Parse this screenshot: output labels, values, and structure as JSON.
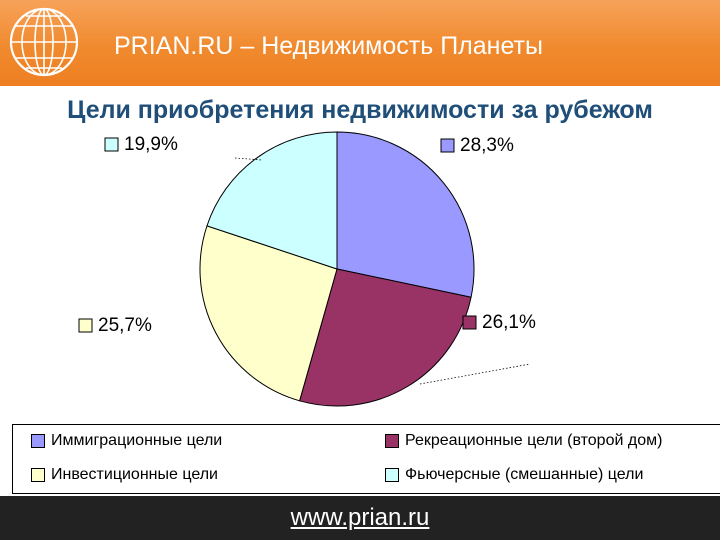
{
  "header": {
    "title": "PRIAN.RU – Недвижимость Планеты"
  },
  "slide": {
    "title": "Цели приобретения недвижимости за рубежом"
  },
  "chart_data": {
    "type": "pie",
    "title": "",
    "slices": [
      {
        "label": "Иммиграционные цели",
        "value": 28.3,
        "display": "28,3%",
        "color": "#9999ff"
      },
      {
        "label": "Рекреационные цели (второй дом)",
        "value": 26.1,
        "display": "26,1%",
        "color": "#993366"
      },
      {
        "label": "Инвестиционные цели",
        "value": 25.7,
        "display": "25,7%",
        "color": "#ffffcc"
      },
      {
        "label": "Фьючерсные (смешанные) цели",
        "value": 19.9,
        "display": "19,9%",
        "color": "#ccffff"
      }
    ],
    "legend_position": "bottom"
  },
  "footer": {
    "url": "www.prian.ru"
  }
}
